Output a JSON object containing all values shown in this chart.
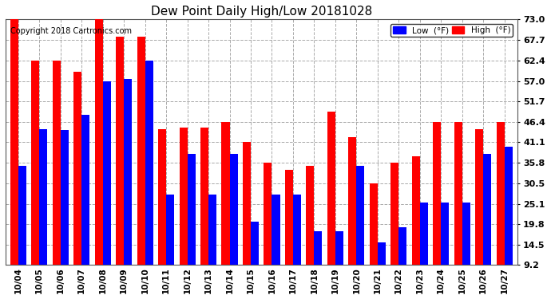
{
  "title": "Dew Point Daily High/Low 20181028",
  "copyright": "Copyright 2018 Cartronics.com",
  "dates": [
    "10/04",
    "10/05",
    "10/06",
    "10/07",
    "10/08",
    "10/09",
    "10/10",
    "10/11",
    "10/12",
    "10/13",
    "10/14",
    "10/15",
    "10/16",
    "10/17",
    "10/18",
    "10/19",
    "10/20",
    "10/21",
    "10/22",
    "10/23",
    "10/24",
    "10/25",
    "10/26",
    "10/27"
  ],
  "high_values": [
    73.0,
    62.4,
    62.4,
    59.5,
    75.2,
    68.5,
    68.5,
    44.6,
    45.0,
    45.0,
    46.4,
    41.1,
    35.8,
    34.0,
    35.0,
    49.0,
    42.5,
    30.5,
    35.8,
    37.5,
    46.4,
    46.4,
    44.6,
    46.4
  ],
  "low_values": [
    35.0,
    44.6,
    44.2,
    48.2,
    57.0,
    57.5,
    62.4,
    27.5,
    38.0,
    27.5,
    38.0,
    20.5,
    27.5,
    27.5,
    18.0,
    18.0,
    35.0,
    15.0,
    19.0,
    25.5,
    25.5,
    25.5,
    38.0,
    40.0
  ],
  "high_color": "#ff0000",
  "low_color": "#0000ff",
  "bg_color": "#ffffff",
  "plot_bg_color": "#ffffff",
  "grid_color": "#aaaaaa",
  "ylim_min": 9.2,
  "ylim_max": 73.0,
  "yticks": [
    9.2,
    14.5,
    19.8,
    25.1,
    30.5,
    35.8,
    41.1,
    46.4,
    51.7,
    57.0,
    62.4,
    67.7,
    73.0
  ],
  "bar_width": 0.38,
  "legend_low_label": "Low  (°F)",
  "legend_high_label": "High  (°F)"
}
